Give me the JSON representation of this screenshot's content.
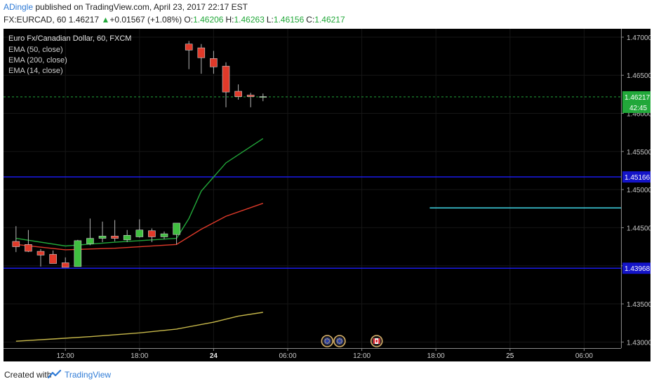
{
  "header": {
    "author": "ADingle",
    "published_text": " published on TradingView.com, April 23, 2017 22:17 EST",
    "symbol": "FX:EURCAD, 60",
    "last": "1.46217",
    "change": "+0.01567 (+1.08%)",
    "o_label": "O:",
    "o": "1.46206",
    "h_label": "H:",
    "h": "1.46263",
    "l_label": "L:",
    "l": "1.46156",
    "c_label": "C:",
    "c": "1.46217"
  },
  "legend": {
    "title": "Euro Fx/Canadian Dollar, 60, FXCM",
    "items": [
      "EMA (50, close)",
      "EMA (200, close)",
      "EMA (14, close)"
    ]
  },
  "footer": {
    "created_with": "Created with",
    "brand": "TradingView"
  },
  "chart_data": {
    "type": "candlestick",
    "ylim": [
      1.4292,
      1.4711
    ],
    "y_ticks": [
      1.43,
      1.435,
      1.44,
      1.445,
      1.45,
      1.455,
      1.46,
      1.465,
      1.47
    ],
    "y_tick_labels": [
      "1.43000",
      "1.43500",
      "1.44000",
      "1.44500",
      "1.45000",
      "1.45500",
      "1.46000",
      "1.46500",
      "1.47000"
    ],
    "x_tick_labels": [
      {
        "label": "12:00",
        "slot": 4.5
      },
      {
        "label": "18:00",
        "slot": 10.5
      },
      {
        "label": "24",
        "slot": 16.5
      },
      {
        "label": "06:00",
        "slot": 22.5
      },
      {
        "label": "12:00",
        "slot": 28.5
      },
      {
        "label": "18:00",
        "slot": 34.5
      },
      {
        "label": "25",
        "slot": 40.5
      },
      {
        "label": "06:00",
        "slot": 46.5
      }
    ],
    "x_slots": 48.5,
    "candles": [
      {
        "o": 1.4432,
        "h": 1.4452,
        "l": 1.4418,
        "c": 1.4425
      },
      {
        "o": 1.4428,
        "h": 1.4447,
        "l": 1.4418,
        "c": 1.4419
      },
      {
        "o": 1.4419,
        "h": 1.4422,
        "l": 1.4399,
        "c": 1.4414
      },
      {
        "o": 1.4415,
        "h": 1.442,
        "l": 1.4404,
        "c": 1.4403
      },
      {
        "o": 1.4404,
        "h": 1.4411,
        "l": 1.4398,
        "c": 1.4398
      },
      {
        "o": 1.4399,
        "h": 1.4434,
        "l": 1.4399,
        "c": 1.4433
      },
      {
        "o": 1.4429,
        "h": 1.4462,
        "l": 1.4427,
        "c": 1.4436
      },
      {
        "o": 1.4436,
        "h": 1.4458,
        "l": 1.4431,
        "c": 1.4439
      },
      {
        "o": 1.4439,
        "h": 1.446,
        "l": 1.4432,
        "c": 1.4436
      },
      {
        "o": 1.4434,
        "h": 1.4447,
        "l": 1.4431,
        "c": 1.444
      },
      {
        "o": 1.4438,
        "h": 1.4461,
        "l": 1.4437,
        "c": 1.4447
      },
      {
        "o": 1.4446,
        "h": 1.4449,
        "l": 1.4431,
        "c": 1.4438
      },
      {
        "o": 1.4438,
        "h": 1.4445,
        "l": 1.4435,
        "c": 1.4442
      },
      {
        "o": 1.4441,
        "h": 1.4455,
        "l": 1.4428,
        "c": 1.4456
      },
      {
        "o": 1.4691,
        "h": 1.4695,
        "l": 1.4658,
        "c": 1.4683
      },
      {
        "o": 1.4686,
        "h": 1.4691,
        "l": 1.4652,
        "c": 1.4673
      },
      {
        "o": 1.4672,
        "h": 1.4682,
        "l": 1.4652,
        "c": 1.4661
      },
      {
        "o": 1.4662,
        "h": 1.4667,
        "l": 1.4608,
        "c": 1.4628
      },
      {
        "o": 1.4629,
        "h": 1.4638,
        "l": 1.4618,
        "c": 1.4622
      },
      {
        "o": 1.4624,
        "h": 1.4627,
        "l": 1.4608,
        "c": 1.4622
      },
      {
        "o": 1.4621,
        "h": 1.4626,
        "l": 1.4616,
        "c": 1.4622
      }
    ],
    "series": [
      {
        "color": "#22a83a",
        "values": [
          [
            0,
            1.4436
          ],
          [
            4,
            1.4426
          ],
          [
            8,
            1.4431
          ],
          [
            10,
            1.4433
          ],
          [
            13,
            1.4436
          ],
          [
            14,
            1.4462
          ],
          [
            15,
            1.4498
          ],
          [
            17,
            1.4535
          ],
          [
            20,
            1.4567
          ]
        ]
      },
      {
        "color": "#e03a2a",
        "values": [
          [
            0,
            1.4428
          ],
          [
            4,
            1.4421
          ],
          [
            8,
            1.4423
          ],
          [
            10,
            1.4425
          ],
          [
            13,
            1.4428
          ],
          [
            15,
            1.4448
          ],
          [
            17,
            1.4465
          ],
          [
            20,
            1.4482
          ]
        ]
      },
      {
        "color": "#c7b84a",
        "values": [
          [
            0,
            1.4301
          ],
          [
            3,
            1.4304
          ],
          [
            6,
            1.4307
          ],
          [
            10,
            1.4312
          ],
          [
            13,
            1.4317
          ],
          [
            16,
            1.4326
          ],
          [
            18,
            1.4334
          ],
          [
            20,
            1.4339
          ]
        ]
      }
    ],
    "hlines": [
      {
        "value": 1.45166,
        "color": "#1e1eff",
        "label": "1.45166"
      },
      {
        "value": 1.43968,
        "color": "#1e1eff",
        "label": "1.43968"
      }
    ],
    "segment": {
      "value": 1.4476,
      "x_from": 34,
      "color": "#3fd6e6"
    },
    "last_price": {
      "value": 1.46217,
      "label": "1.46217",
      "countdown": "42:45",
      "color": "#22a83a"
    },
    "event_markers": [
      {
        "slot": 25.7,
        "kind": "eu"
      },
      {
        "slot": 26.7,
        "kind": "eu"
      },
      {
        "slot": 29.7,
        "kind": "ca"
      }
    ]
  }
}
